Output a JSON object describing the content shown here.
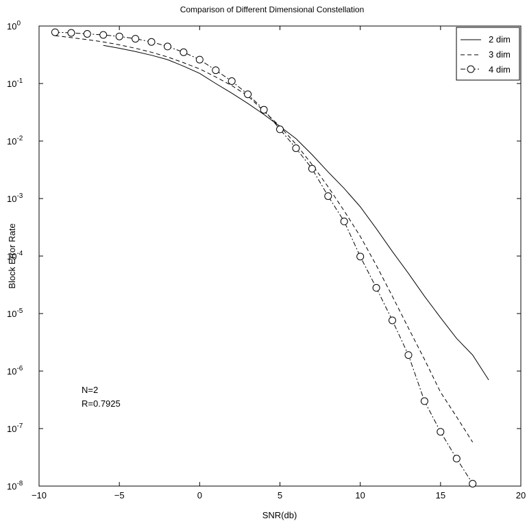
{
  "chart_data": {
    "type": "line",
    "title": "Comparison of Different Dimensional Constellation",
    "xlabel": "SNR(db)",
    "ylabel": "Block Error Rate",
    "xlim": [
      -10,
      20
    ],
    "ylim_log10": [
      -8,
      0
    ],
    "yscale": "log",
    "x_ticks": [
      "−10",
      "−5",
      "0",
      "5",
      "10",
      "15",
      "20"
    ],
    "y_ticks": [
      {
        "base": "10",
        "exp": "0"
      },
      {
        "base": "10",
        "exp": "-1"
      },
      {
        "base": "10",
        "exp": "-2"
      },
      {
        "base": "10",
        "exp": "-3"
      },
      {
        "base": "10",
        "exp": "-4"
      },
      {
        "base": "10",
        "exp": "-5"
      },
      {
        "base": "10",
        "exp": "-6"
      },
      {
        "base": "10",
        "exp": "-7"
      },
      {
        "base": "10",
        "exp": "-8"
      }
    ],
    "grid": false,
    "legend_position": "top-right",
    "series": [
      {
        "name": "2 dim",
        "style": "solid",
        "marker": "none",
        "x": [
          -6,
          -5,
          -4,
          -3,
          -2,
          -1,
          0,
          1,
          2,
          3,
          4,
          5,
          6,
          7,
          8,
          9,
          10,
          11,
          12,
          13,
          14,
          15,
          16,
          17,
          18
        ],
        "y": [
          0.46,
          0.41,
          0.36,
          0.31,
          0.26,
          0.2,
          0.15,
          0.1,
          0.068,
          0.045,
          0.029,
          0.018,
          0.011,
          0.0058,
          0.0029,
          0.0015,
          0.00072,
          0.0003,
          0.00012,
          5e-05,
          2e-05,
          8.5e-06,
          3.7e-06,
          1.9e-06,
          7e-07
        ]
      },
      {
        "name": "3 dim",
        "style": "dashed",
        "marker": "none",
        "x": [
          -9,
          -8,
          -7,
          -6,
          -5,
          -4,
          -3,
          -2,
          -1,
          0,
          1,
          2,
          3,
          4,
          5,
          6,
          7,
          8,
          9,
          10,
          11,
          12,
          13,
          14,
          15,
          16,
          17
        ],
        "y": [
          0.68,
          0.63,
          0.58,
          0.53,
          0.47,
          0.41,
          0.35,
          0.29,
          0.23,
          0.18,
          0.13,
          0.092,
          0.061,
          0.033,
          0.018,
          0.0088,
          0.0039,
          0.0016,
          0.00061,
          0.00022,
          6.9e-05,
          2e-05,
          5.6e-06,
          1.6e-06,
          4.3e-07,
          1.6e-07,
          5.8e-08
        ]
      },
      {
        "name": "4 dim",
        "style": "dashdot",
        "marker": "circle",
        "x": [
          -9,
          -8,
          -7,
          -6,
          -5,
          -4,
          -3,
          -2,
          -1,
          0,
          1,
          2,
          3,
          4,
          5,
          6,
          7,
          8,
          9,
          10,
          11,
          12,
          13,
          14,
          15,
          16,
          17
        ],
        "y": [
          0.78,
          0.76,
          0.73,
          0.7,
          0.66,
          0.6,
          0.53,
          0.44,
          0.35,
          0.26,
          0.17,
          0.11,
          0.065,
          0.035,
          0.016,
          0.0075,
          0.0033,
          0.0011,
          0.0004,
          9.8e-05,
          2.8e-05,
          7.6e-06,
          1.9e-06,
          3e-07,
          8.8e-08,
          3e-08,
          1.1e-08
        ]
      }
    ],
    "annotations": [
      "N=2",
      "R=0.7925"
    ]
  }
}
